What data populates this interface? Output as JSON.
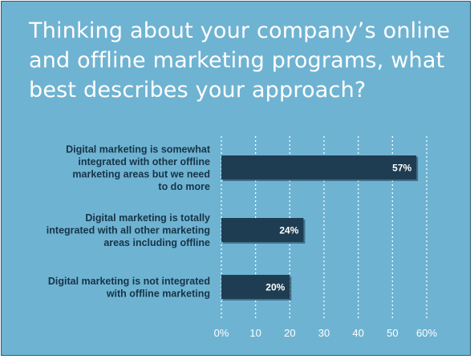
{
  "colors": {
    "background": "#6fb3d2",
    "bar": "#1f3d52",
    "bar_shadow": "#163041",
    "grid": "#ffffff",
    "title": "#ffffff",
    "category_text": "#163447"
  },
  "chart_data": {
    "type": "bar",
    "orientation": "horizontal",
    "title": "Thinking about your company’s online and offline marketing programs, what best describes your approach?",
    "categories": [
      "Digital marketing is somewhat integrated with other offline marketing areas but we need to do more",
      "Digital marketing is totally integrated with all other marketing areas including offline",
      "Digital marketing is not integrated with offline marketing"
    ],
    "category_lines": [
      [
        "Digital marketing is somewhat",
        "integrated with other offline",
        "marketing areas but we need",
        "to do more"
      ],
      [
        "Digital marketing is totally",
        "integrated with all other marketing",
        "areas including offline"
      ],
      [
        "Digital marketing is not integrated",
        "with offline marketing"
      ]
    ],
    "values": [
      57,
      24,
      20
    ],
    "value_labels": [
      "57%",
      "24%",
      "20%"
    ],
    "xlim": [
      0,
      60
    ],
    "xticks": [
      "0%",
      "10",
      "20",
      "30",
      "40",
      "50",
      "60%"
    ],
    "xtick_values": [
      0,
      10,
      20,
      30,
      40,
      50,
      60
    ],
    "grid": "vertical dotted",
    "xlabel": "",
    "ylabel": ""
  }
}
